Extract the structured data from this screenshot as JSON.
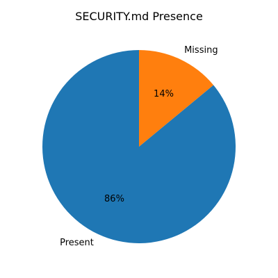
{
  "chart_data": {
    "type": "pie",
    "title": "SECURITY.md Presence",
    "categories": [
      "Present",
      "Missing"
    ],
    "values": [
      86,
      14
    ],
    "value_labels": [
      "86%",
      "14%"
    ],
    "colors": [
      "#1f77b4",
      "#ff7f0e"
    ],
    "start_angle_deg": 90,
    "direction": "counterclockwise"
  }
}
